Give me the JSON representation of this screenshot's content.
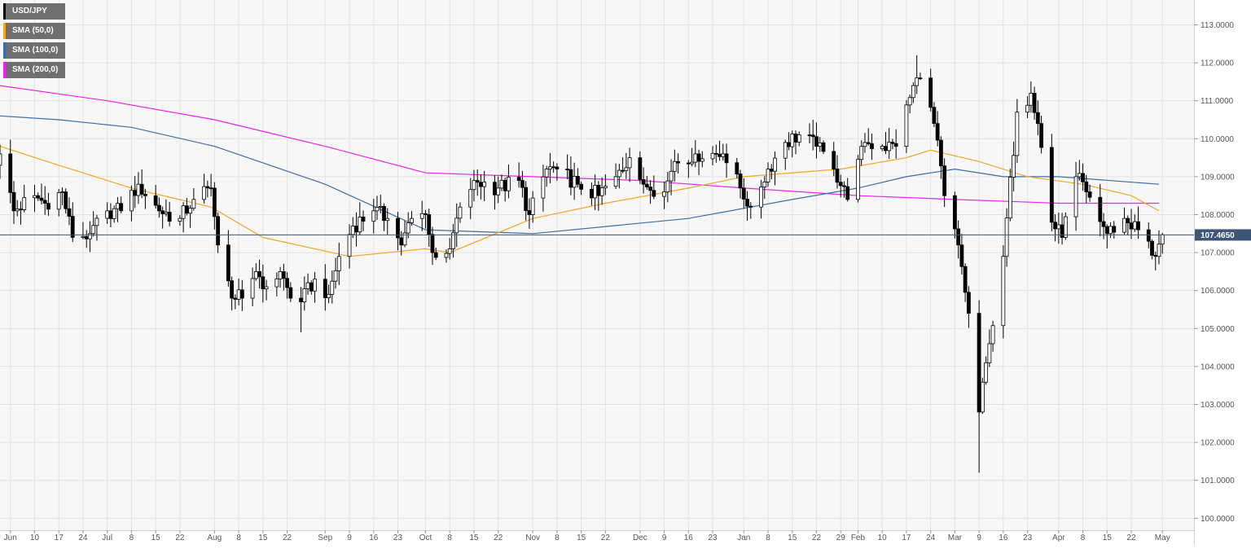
{
  "colors": {
    "up": "#ffffff",
    "down": "#000000",
    "outline": "#000000",
    "sma50": "#f5a623",
    "sma100": "#3a6ea5",
    "sma200": "#ee22ee",
    "price_line": "#3d5576",
    "price_badge": "#3d5576"
  },
  "chart_data": {
    "type": "candlestick",
    "symbol": "USD/JPY",
    "legend": [
      {
        "label": "USD/JPY",
        "color": "#000000"
      },
      {
        "label": "SMA (50,0)",
        "color": "#f5a623"
      },
      {
        "label": "SMA (100,0)",
        "color": "#3a6ea5"
      },
      {
        "label": "SMA (200,0)",
        "color": "#ee22ee"
      }
    ],
    "last_price_label": "107.4650",
    "last_price": 107.465,
    "ylim": [
      100.0,
      113.0
    ],
    "y_ticks": [
      "100.0000",
      "101.0000",
      "102.0000",
      "103.0000",
      "104.0000",
      "105.0000",
      "106.0000",
      "107.0000",
      "108.0000",
      "109.0000",
      "110.0000",
      "111.0000",
      "112.0000",
      "113.0000"
    ],
    "x_ticks": [
      {
        "label": "Jun",
        "date": "2019-06-03"
      },
      {
        "label": "10",
        "date": "2019-06-10"
      },
      {
        "label": "17",
        "date": "2019-06-17"
      },
      {
        "label": "24",
        "date": "2019-06-24"
      },
      {
        "label": "Jul",
        "date": "2019-07-01"
      },
      {
        "label": "8",
        "date": "2019-07-08"
      },
      {
        "label": "15",
        "date": "2019-07-15"
      },
      {
        "label": "22",
        "date": "2019-07-22"
      },
      {
        "label": "Aug",
        "date": "2019-08-01"
      },
      {
        "label": "8",
        "date": "2019-08-08"
      },
      {
        "label": "15",
        "date": "2019-08-15"
      },
      {
        "label": "22",
        "date": "2019-08-22"
      },
      {
        "label": "Sep",
        "date": "2019-09-02"
      },
      {
        "label": "9",
        "date": "2019-09-09"
      },
      {
        "label": "16",
        "date": "2019-09-16"
      },
      {
        "label": "23",
        "date": "2019-09-23"
      },
      {
        "label": "Oct",
        "date": "2019-10-01"
      },
      {
        "label": "8",
        "date": "2019-10-08"
      },
      {
        "label": "15",
        "date": "2019-10-15"
      },
      {
        "label": "22",
        "date": "2019-10-22"
      },
      {
        "label": "Nov",
        "date": "2019-11-01"
      },
      {
        "label": "8",
        "date": "2019-11-08"
      },
      {
        "label": "15",
        "date": "2019-11-15"
      },
      {
        "label": "22",
        "date": "2019-11-22"
      },
      {
        "label": "Dec",
        "date": "2019-12-02"
      },
      {
        "label": "9",
        "date": "2019-12-09"
      },
      {
        "label": "16",
        "date": "2019-12-16"
      },
      {
        "label": "23",
        "date": "2019-12-23"
      },
      {
        "label": "Jan",
        "date": "2020-01-01"
      },
      {
        "label": "8",
        "date": "2020-01-08"
      },
      {
        "label": "15",
        "date": "2020-01-15"
      },
      {
        "label": "22",
        "date": "2020-01-22"
      },
      {
        "label": "29",
        "date": "2020-01-29"
      },
      {
        "label": "Feb",
        "date": "2020-02-03"
      },
      {
        "label": "10",
        "date": "2020-02-10"
      },
      {
        "label": "17",
        "date": "2020-02-17"
      },
      {
        "label": "24",
        "date": "2020-02-24"
      },
      {
        "label": "Mar",
        "date": "2020-03-02"
      },
      {
        "label": "9",
        "date": "2020-03-09"
      },
      {
        "label": "16",
        "date": "2020-03-16"
      },
      {
        "label": "23",
        "date": "2020-03-23"
      },
      {
        "label": "Apr",
        "date": "2020-04-01"
      },
      {
        "label": "8",
        "date": "2020-04-08"
      },
      {
        "label": "15",
        "date": "2020-04-15"
      },
      {
        "label": "22",
        "date": "2020-04-22"
      },
      {
        "label": "May",
        "date": "2020-05-01"
      }
    ],
    "x_range": [
      "2019-05-31",
      "2020-05-04"
    ],
    "anchors": [
      [
        "2019-05-31",
        109.6,
        true
      ],
      [
        "2019-06-04",
        108.1,
        false
      ],
      [
        "2019-06-10",
        108.5,
        true
      ],
      [
        "2019-06-13",
        108.3,
        false
      ],
      [
        "2019-06-18",
        108.6,
        false
      ],
      [
        "2019-06-21",
        107.4,
        false
      ],
      [
        "2019-06-26",
        107.5,
        true
      ],
      [
        "2019-07-01",
        108.1,
        true
      ],
      [
        "2019-07-05",
        108.1,
        true
      ],
      [
        "2019-07-10",
        108.8,
        false
      ],
      [
        "2019-07-16",
        108.1,
        false
      ],
      [
        "2019-07-22",
        107.9,
        true
      ],
      [
        "2019-07-26",
        108.4,
        true
      ],
      [
        "2019-07-31",
        108.7,
        true
      ],
      [
        "2019-08-02",
        107.2,
        false
      ],
      [
        "2019-08-06",
        105.8,
        false
      ],
      [
        "2019-08-09",
        105.8,
        false
      ],
      [
        "2019-08-13",
        106.5,
        true
      ],
      [
        "2019-08-16",
        106.1,
        false
      ],
      [
        "2019-08-20",
        106.5,
        true
      ],
      [
        "2019-08-23",
        105.8,
        false
      ],
      [
        "2019-08-26",
        105.7,
        false
      ],
      [
        "2019-08-30",
        106.3,
        true
      ],
      [
        "2019-09-03",
        105.9,
        false
      ],
      [
        "2019-09-06",
        106.9,
        true
      ],
      [
        "2019-09-10",
        107.7,
        true
      ],
      [
        "2019-09-16",
        108.1,
        true
      ],
      [
        "2019-09-20",
        107.9,
        false
      ],
      [
        "2019-09-24",
        107.2,
        false
      ],
      [
        "2019-09-27",
        107.9,
        true
      ],
      [
        "2019-10-01",
        108.0,
        false
      ],
      [
        "2019-10-03",
        107.0,
        false
      ],
      [
        "2019-10-08",
        107.1,
        false
      ],
      [
        "2019-10-11",
        108.2,
        true
      ],
      [
        "2019-10-15",
        108.9,
        true
      ],
      [
        "2019-10-22",
        108.7,
        false
      ],
      [
        "2019-10-28",
        108.9,
        true
      ],
      [
        "2019-10-31",
        108.0,
        false
      ],
      [
        "2019-11-05",
        109.2,
        true
      ],
      [
        "2019-11-08",
        109.2,
        false
      ],
      [
        "2019-11-14",
        108.8,
        false
      ],
      [
        "2019-11-20",
        108.5,
        false
      ],
      [
        "2019-11-25",
        109.0,
        true
      ],
      [
        "2019-11-29",
        109.5,
        true
      ],
      [
        "2019-12-03",
        108.8,
        false
      ],
      [
        "2019-12-09",
        108.6,
        false
      ],
      [
        "2019-12-12",
        109.4,
        true
      ],
      [
        "2019-12-18",
        109.6,
        true
      ],
      [
        "2019-12-26",
        109.6,
        false
      ],
      [
        "2019-12-31",
        108.7,
        false
      ],
      [
        "2020-01-03",
        108.2,
        false
      ],
      [
        "2020-01-08",
        109.2,
        true
      ],
      [
        "2020-01-13",
        109.9,
        true
      ],
      [
        "2020-01-17",
        110.1,
        true
      ],
      [
        "2020-01-22",
        109.8,
        false
      ],
      [
        "2020-01-27",
        109.2,
        false
      ],
      [
        "2020-01-31",
        108.4,
        false
      ],
      [
        "2020-02-05",
        109.9,
        true
      ],
      [
        "2020-02-10",
        109.8,
        false
      ],
      [
        "2020-02-14",
        109.8,
        true
      ],
      [
        "2020-02-19",
        111.4,
        true
      ],
      [
        "2020-02-21",
        111.6,
        false
      ],
      [
        "2020-02-25",
        110.4,
        false
      ],
      [
        "2020-02-28",
        108.5,
        false
      ],
      [
        "2020-03-03",
        107.2,
        false
      ],
      [
        "2020-03-06",
        105.4,
        false
      ],
      [
        "2020-03-09",
        102.8,
        false
      ],
      [
        "2020-03-12",
        104.6,
        true
      ],
      [
        "2020-03-16",
        106.9,
        true
      ],
      [
        "2020-03-20",
        110.7,
        true
      ],
      [
        "2020-03-24",
        111.2,
        true
      ],
      [
        "2020-03-26",
        110.4,
        false
      ],
      [
        "2020-03-30",
        107.8,
        false
      ],
      [
        "2020-04-02",
        107.4,
        false
      ],
      [
        "2020-04-06",
        109.0,
        true
      ],
      [
        "2020-04-09",
        108.6,
        false
      ],
      [
        "2020-04-15",
        107.5,
        false
      ],
      [
        "2020-04-20",
        107.9,
        true
      ],
      [
        "2020-04-24",
        107.6,
        false
      ],
      [
        "2020-04-29",
        106.9,
        false
      ],
      [
        "2020-05-01",
        107.47,
        true
      ]
    ],
    "sma50": [
      [
        "2019-05-31",
        109.8
      ],
      [
        "2019-06-17",
        109.3
      ],
      [
        "2019-07-08",
        108.7
      ],
      [
        "2019-07-31",
        108.2
      ],
      [
        "2019-08-15",
        107.4
      ],
      [
        "2019-09-09",
        106.9
      ],
      [
        "2019-10-01",
        107.1
      ],
      [
        "2019-10-08",
        107.0
      ],
      [
        "2019-11-01",
        107.9
      ],
      [
        "2019-11-22",
        108.3
      ],
      [
        "2019-12-16",
        108.7
      ],
      [
        "2020-01-01",
        109.0
      ],
      [
        "2020-01-29",
        109.2
      ],
      [
        "2020-02-17",
        109.5
      ],
      [
        "2020-02-24",
        109.7
      ],
      [
        "2020-03-09",
        109.4
      ],
      [
        "2020-03-23",
        109.0
      ],
      [
        "2020-04-08",
        108.8
      ],
      [
        "2020-04-22",
        108.5
      ],
      [
        "2020-04-30",
        108.1
      ]
    ],
    "sma100": [
      [
        "2019-05-31",
        110.6
      ],
      [
        "2019-06-17",
        110.5
      ],
      [
        "2019-07-08",
        110.3
      ],
      [
        "2019-08-01",
        109.8
      ],
      [
        "2019-09-02",
        108.8
      ],
      [
        "2019-10-01",
        107.6
      ],
      [
        "2019-11-01",
        107.5
      ],
      [
        "2019-12-16",
        107.9
      ],
      [
        "2020-01-15",
        108.4
      ],
      [
        "2020-02-03",
        108.7
      ],
      [
        "2020-02-17",
        109.0
      ],
      [
        "2020-03-02",
        109.2
      ],
      [
        "2020-03-16",
        109.0
      ],
      [
        "2020-04-01",
        109.0
      ],
      [
        "2020-04-30",
        108.8
      ]
    ],
    "sma200": [
      [
        "2019-05-31",
        111.4
      ],
      [
        "2019-07-01",
        111.0
      ],
      [
        "2019-08-01",
        110.5
      ],
      [
        "2019-09-02",
        109.8
      ],
      [
        "2019-10-01",
        109.1
      ],
      [
        "2019-11-01",
        109.0
      ],
      [
        "2019-12-02",
        108.9
      ],
      [
        "2020-01-01",
        108.7
      ],
      [
        "2020-02-03",
        108.5
      ],
      [
        "2020-03-02",
        108.4
      ],
      [
        "2020-04-01",
        108.3
      ],
      [
        "2020-04-30",
        108.3
      ]
    ]
  }
}
